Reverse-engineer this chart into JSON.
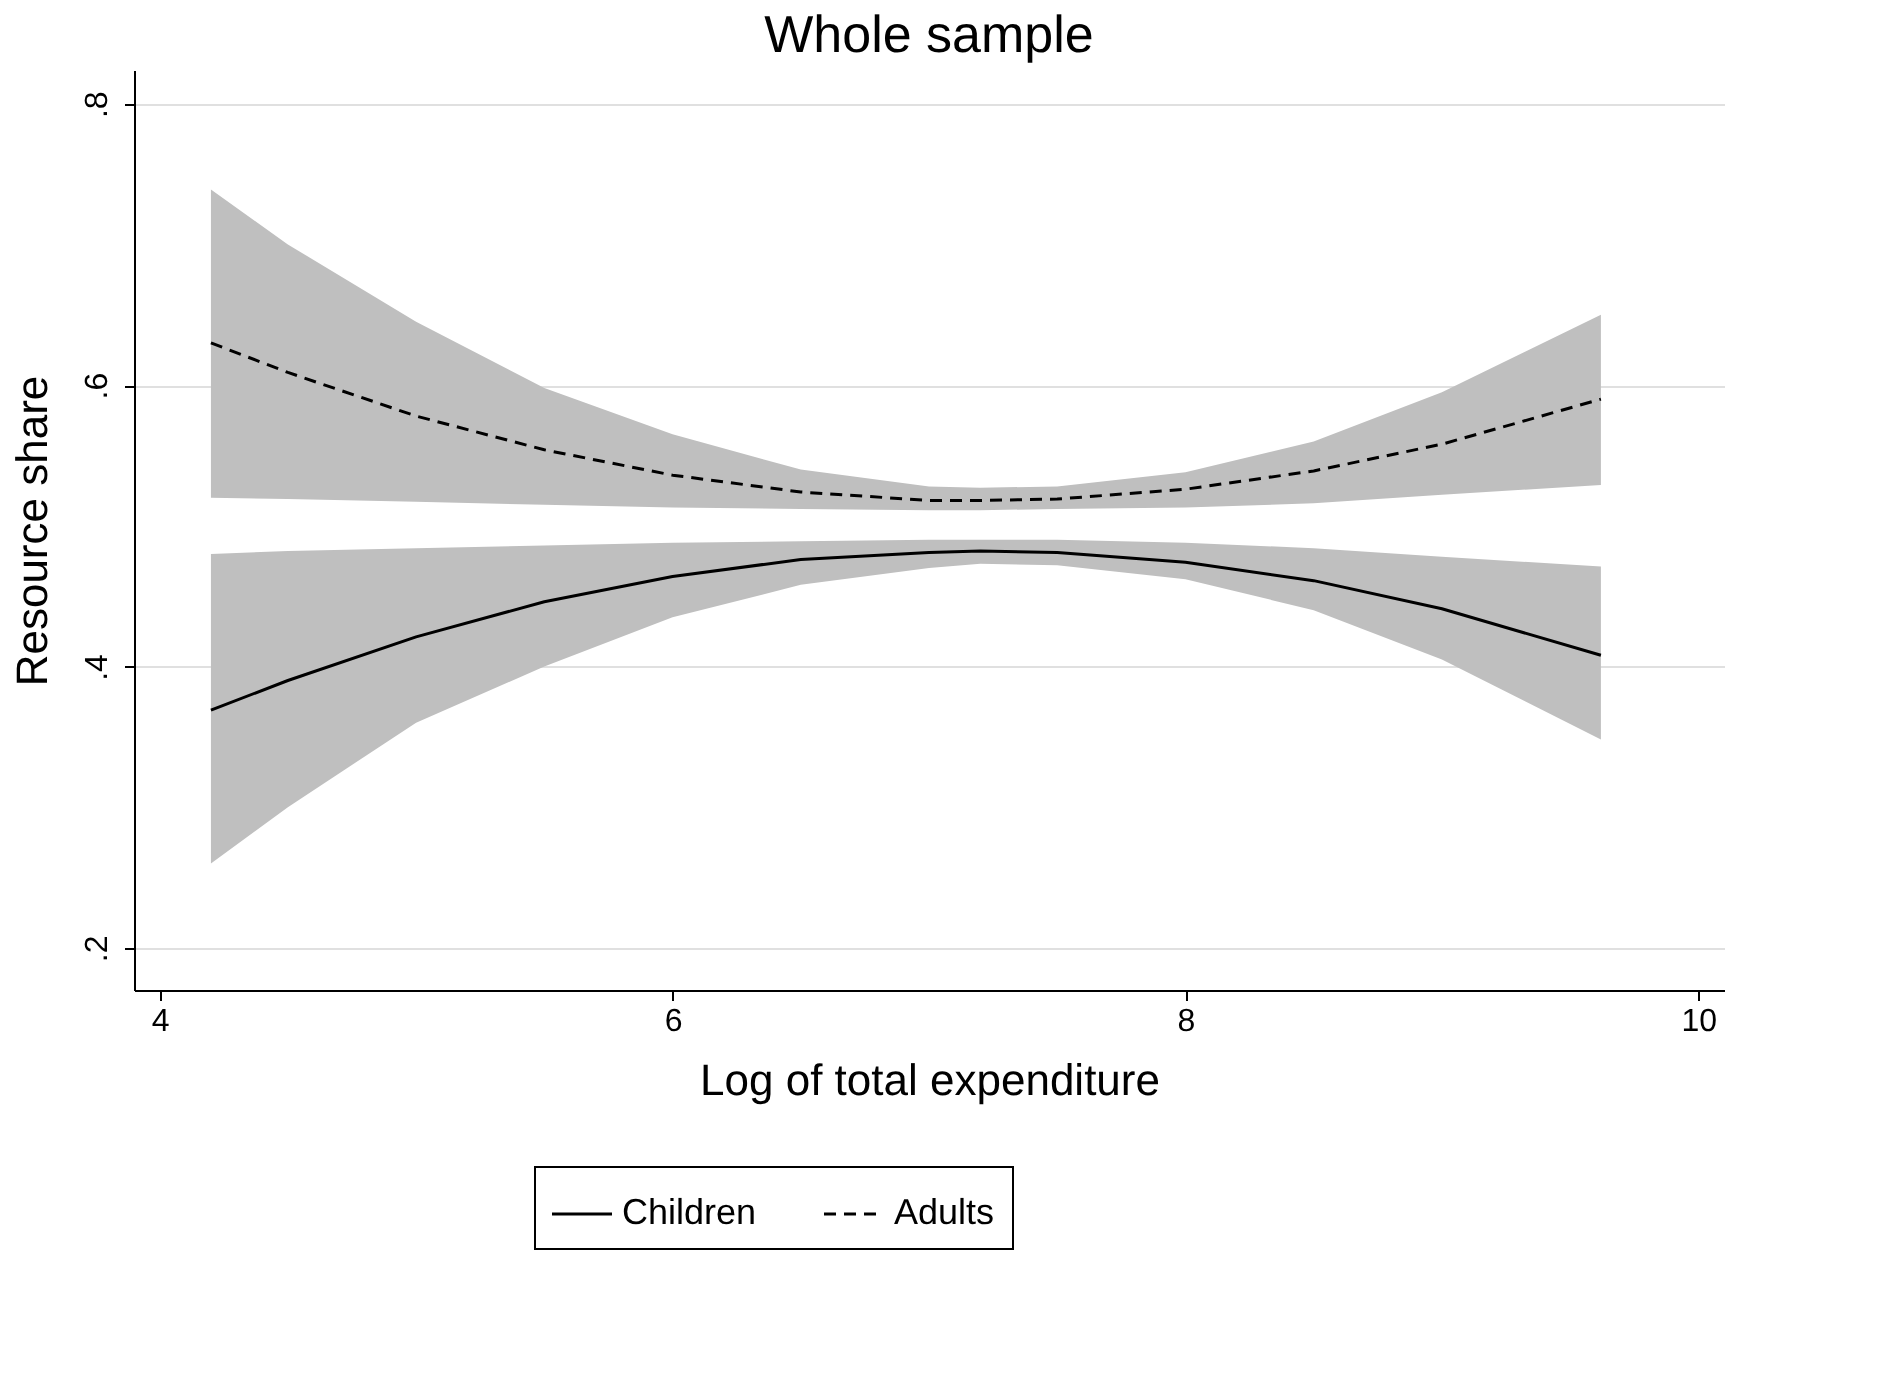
{
  "chart_data": {
    "type": "line",
    "title": "Whole sample",
    "xlabel": "Log of total expenditure",
    "ylabel": "Resource share",
    "x": [
      4.2,
      4.5,
      5,
      5.5,
      6,
      6.5,
      7,
      7.2,
      7.5,
      8,
      8.5,
      9,
      9.62
    ],
    "series": [
      {
        "name": "Children",
        "color": "#000000",
        "line_style": "solid",
        "values": [
          0.369,
          0.39,
          0.421,
          0.446,
          0.464,
          0.476,
          0.481,
          0.482,
          0.481,
          0.474,
          0.461,
          0.441,
          0.408
        ],
        "lower": [
          0.26,
          0.3,
          0.36,
          0.4,
          0.435,
          0.458,
          0.47,
          0.473,
          0.472,
          0.462,
          0.44,
          0.405,
          0.348
        ],
        "upper": [
          0.48,
          0.482,
          0.484,
          0.486,
          0.488,
          0.489,
          0.49,
          0.49,
          0.49,
          0.488,
          0.484,
          0.478,
          0.471
        ]
      },
      {
        "name": "Adults",
        "color": "#000000",
        "line_style": "dashed",
        "values": [
          0.63,
          0.609,
          0.578,
          0.554,
          0.536,
          0.524,
          0.518,
          0.518,
          0.519,
          0.526,
          0.539,
          0.558,
          0.59
        ],
        "lower": [
          0.52,
          0.519,
          0.517,
          0.515,
          0.513,
          0.512,
          0.511,
          0.511,
          0.512,
          0.513,
          0.516,
          0.522,
          0.529
        ],
        "upper": [
          0.739,
          0.7,
          0.645,
          0.598,
          0.565,
          0.54,
          0.528,
          0.527,
          0.528,
          0.538,
          0.56,
          0.595,
          0.65
        ]
      }
    ],
    "xlim": [
      3.9,
      10.1
    ],
    "xticks": [
      4,
      6,
      8,
      10
    ],
    "ylim": [
      0.17,
      0.824
    ],
    "yticks": [
      {
        "value": 0.2,
        "label": ".2"
      },
      {
        "value": 0.4,
        "label": ".4"
      },
      {
        "value": 0.6,
        "label": ".6"
      },
      {
        "value": 0.8,
        "label": ".8"
      }
    ],
    "grid": "y",
    "legend": "bottom",
    "marker": "none"
  }
}
